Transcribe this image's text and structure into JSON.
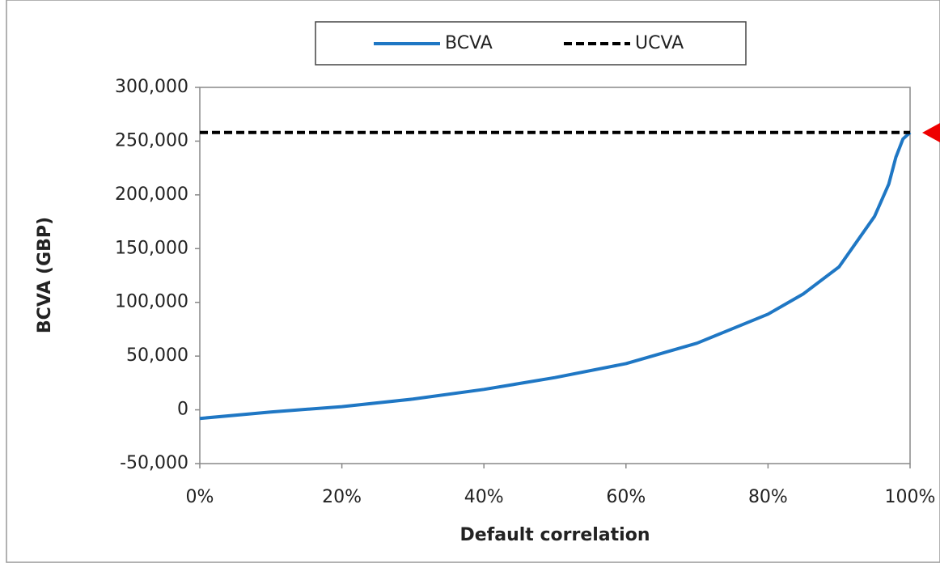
{
  "chart_data": {
    "type": "line",
    "xlabel": "Default correlation",
    "ylabel": "BCVA (GBP)",
    "series": [
      {
        "name": "BCVA",
        "color": "#1f77c4",
        "dash": "solid",
        "x": [
          0,
          10,
          20,
          30,
          40,
          50,
          60,
          70,
          80,
          85,
          90,
          95,
          97,
          98,
          99,
          100
        ],
        "values": [
          -8000,
          -2000,
          3000,
          10000,
          19000,
          30000,
          43000,
          62000,
          89000,
          108000,
          133000,
          180000,
          210000,
          235000,
          252000,
          258000
        ]
      },
      {
        "name": "UCVA",
        "color": "#000000",
        "dash": "dashed",
        "x": [
          0,
          100
        ],
        "values": [
          258000,
          258000
        ]
      }
    ],
    "xlim": [
      0,
      100
    ],
    "xticks": [
      {
        "value": 0,
        "label": "0%"
      },
      {
        "value": 20,
        "label": "20%"
      },
      {
        "value": 40,
        "label": "40%"
      },
      {
        "value": 60,
        "label": "60%"
      },
      {
        "value": 80,
        "label": "80%"
      },
      {
        "value": 100,
        "label": "100%"
      }
    ],
    "ylim": [
      -50000,
      300000
    ],
    "yticks": [
      {
        "value": -50000,
        "label": "-50,000"
      },
      0,
      {
        "value": 50000,
        "label": "50,000"
      },
      {
        "value": 100000,
        "label": "100,000"
      },
      {
        "value": 150000,
        "label": "150,000"
      },
      {
        "value": 200000,
        "label": "200,000"
      },
      {
        "value": 250000,
        "label": "250,000"
      },
      {
        "value": 300000,
        "label": "300,000"
      }
    ],
    "grid": false,
    "legend": "top"
  }
}
